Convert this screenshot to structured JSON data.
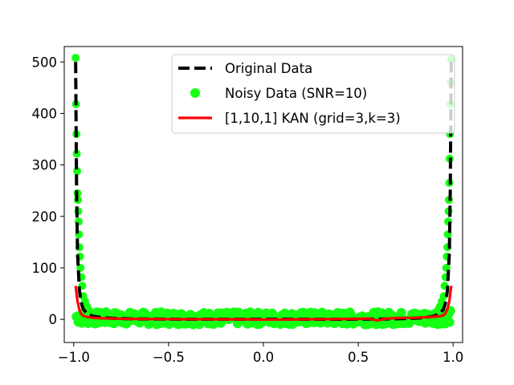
{
  "chart_data": {
    "type": "line",
    "title": "",
    "xlabel": "",
    "ylabel": "",
    "xlim": [
      -1.05,
      1.05
    ],
    "ylim": [
      -45,
      530
    ],
    "xticks": [
      -1.0,
      -0.5,
      0.0,
      0.5,
      1.0
    ],
    "xtick_labels": [
      "−1.0",
      "−0.5",
      "0.0",
      "0.5",
      "1.0"
    ],
    "yticks": [
      0,
      100,
      200,
      300,
      400,
      500
    ],
    "ytick_labels": [
      "0",
      "100",
      "200",
      "300",
      "400",
      "500"
    ],
    "grid": false,
    "legend_position": "top-right",
    "series": [
      {
        "name": "Original Data",
        "style": "dashed",
        "color": "#000000",
        "x": [
          -0.99,
          -0.985,
          -0.98,
          -0.97,
          -0.96,
          -0.95,
          -0.93,
          -0.9,
          -0.85,
          -0.8,
          -0.7,
          -0.6,
          -0.5,
          -0.4,
          -0.3,
          -0.2,
          -0.1,
          0.0,
          0.1,
          0.2,
          0.3,
          0.4,
          0.5,
          0.6,
          0.7,
          0.8,
          0.85,
          0.9,
          0.93,
          0.95,
          0.96,
          0.97,
          0.98,
          0.985,
          0.99
        ],
        "y": [
          500,
          250,
          128,
          56,
          32,
          20,
          11,
          6.3,
          3.3,
          2.1,
          1.0,
          0.57,
          0.36,
          0.24,
          0.17,
          0.13,
          0.11,
          0.1,
          0.11,
          0.13,
          0.17,
          0.24,
          0.36,
          0.57,
          1.0,
          2.1,
          3.3,
          6.3,
          11,
          20,
          32,
          56,
          128,
          250,
          500
        ]
      },
      {
        "name": "Noisy Data (SNR=10)",
        "style": "scatter",
        "color": "#14ff14",
        "x": [
          -0.99,
          -0.988,
          -0.986,
          -0.984,
          -0.982,
          -0.98,
          -0.978,
          -0.976,
          -0.974,
          -0.972,
          -0.97,
          -0.967,
          -0.964,
          -0.96,
          -0.955,
          -0.95,
          -0.94,
          -0.93,
          -0.92,
          -0.9,
          0.9,
          0.92,
          0.93,
          0.94,
          0.95,
          0.955,
          0.96,
          0.964,
          0.967,
          0.97,
          0.972,
          0.974,
          0.976,
          0.978,
          0.98,
          0.982,
          0.984,
          0.986,
          0.988,
          0.99
        ],
        "y": [
          508,
          418,
          360,
          322,
          288,
          245,
          232,
          210,
          190,
          165,
          140,
          122,
          100,
          82,
          65,
          45,
          35,
          25,
          18,
          12,
          12,
          18,
          25,
          35,
          45,
          65,
          82,
          100,
          122,
          140,
          165,
          190,
          210,
          232,
          265,
          312,
          360,
          418,
          460,
          505
        ]
      },
      {
        "name": "[1,10,1] KAN (grid=3,k=3)",
        "style": "solid",
        "color": "#ff0000",
        "x": [
          -0.99,
          -0.98,
          -0.97,
          -0.96,
          -0.95,
          -0.93,
          -0.9,
          -0.85,
          -0.8,
          -0.7,
          -0.6,
          -0.5,
          -0.4,
          -0.3,
          -0.2,
          -0.1,
          0.0,
          0.1,
          0.2,
          0.3,
          0.4,
          0.5,
          0.55,
          0.6,
          0.65,
          0.7,
          0.8,
          0.85,
          0.9,
          0.93,
          0.95,
          0.96,
          0.97,
          0.98,
          0.99
        ],
        "y": [
          65,
          35,
          18,
          10,
          7,
          4.5,
          3,
          2,
          1.5,
          0.8,
          0.5,
          0.3,
          0.2,
          0.1,
          0.05,
          0,
          -0.5,
          -0.5,
          0,
          0.3,
          0.5,
          0.8,
          1.5,
          -2,
          1.5,
          2.5,
          3,
          4,
          5,
          6,
          8,
          12,
          20,
          35,
          65
        ]
      }
    ]
  }
}
